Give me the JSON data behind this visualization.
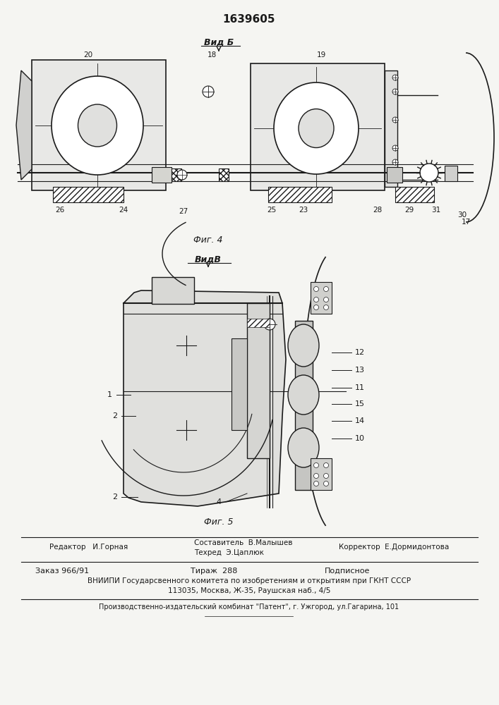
{
  "title": "1639605",
  "fig4_label": "Фиг. 4",
  "fig5_label": "Фиг. 5",
  "vid_b_label": "Вид Б",
  "vid_v_label": "ВидВ",
  "editor_line": "Редактор   И.Горная",
  "sostavitel_line": "Составитель  В.Малышев",
  "tehred_line": "Техред  Э.Цаплюк",
  "korrektor_line": "Корректор  Е.Дормидонтова",
  "zakaz_line": "Заказ 966/91",
  "tirazh_line": "Тираж  288",
  "podpisnoe_line": "Подписное",
  "vniiipi_line": "ВНИИПИ Государсвенного комитета по изобретениям и открытиям при ГКНТ СССР",
  "address_line": "113035, Москва, Ж-35, Раушская наб., 4/5",
  "kombinat_line": "Производственно-издательский комбинат \"Патент\", г. Ужгород, ул.Гагарина, 101",
  "bg_color": "#f5f5f2",
  "line_color": "#1a1a1a"
}
